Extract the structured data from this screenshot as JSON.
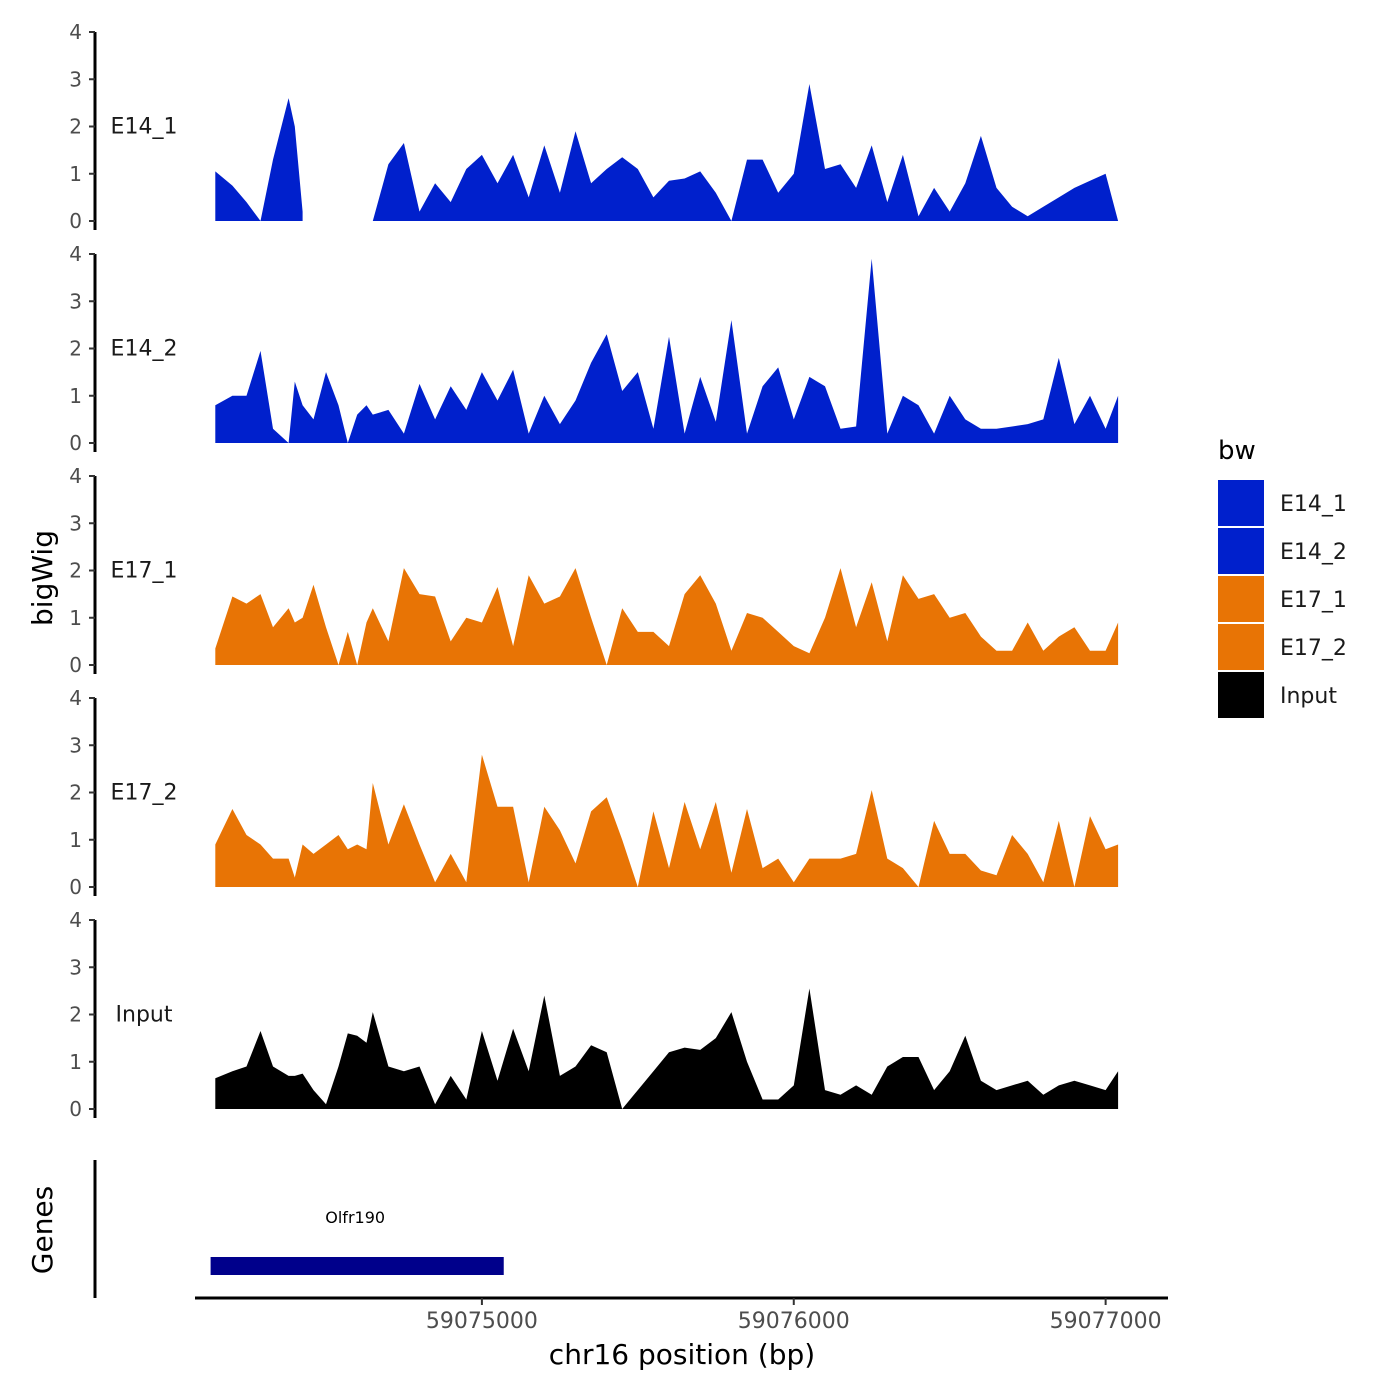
{
  "chart_data": {
    "type": "area",
    "title": "",
    "xlabel": "chr16 position (bp)",
    "ylabel": "bigWig",
    "genes_label": "Genes",
    "xlim": [
      59074080,
      59077200
    ],
    "ylim": [
      0,
      4
    ],
    "y_ticks": [
      "0",
      "1",
      "2",
      "3",
      "4"
    ],
    "x_ticks": [
      {
        "value": 59075000,
        "label": "59075000"
      },
      {
        "value": 59076000,
        "label": "59076000"
      },
      {
        "value": 59077000,
        "label": "59077000"
      }
    ],
    "legend": {
      "title": "bw",
      "position": "right",
      "entries": [
        {
          "label": "E14_1",
          "color": "#0020CC"
        },
        {
          "label": "E14_2",
          "color": "#0020CC"
        },
        {
          "label": "E17_1",
          "color": "#E87405"
        },
        {
          "label": "E17_2",
          "color": "#E87405"
        },
        {
          "label": "Input",
          "color": "#000000"
        }
      ]
    },
    "x": [
      59074145,
      59074200,
      59074245,
      59074290,
      59074330,
      59074380,
      59074400,
      59074425,
      59074460,
      59074500,
      59074540,
      59074570,
      59074600,
      59074630,
      59074650,
      59074700,
      59074750,
      59074800,
      59074850,
      59074900,
      59074950,
      59075000,
      59075050,
      59075100,
      59075150,
      59075200,
      59075250,
      59075300,
      59075350,
      59075400,
      59075450,
      59075500,
      59075550,
      59075600,
      59075650,
      59075700,
      59075750,
      59075800,
      59075850,
      59075900,
      59075950,
      59076000,
      59076050,
      59076100,
      59076150,
      59076200,
      59076250,
      59076300,
      59076350,
      59076400,
      59076450,
      59076500,
      59076550,
      59076600,
      59076650,
      59076700,
      59076750,
      59076800,
      59076850,
      59076900,
      59076950,
      59077000,
      59077040
    ],
    "series": [
      {
        "name": "E14_1",
        "color": "#0020CC",
        "values": [
          1.05,
          0.75,
          0.4,
          0.0,
          1.3,
          2.6,
          2.0,
          0.2,
          null,
          null,
          null,
          null,
          null,
          null,
          0.0,
          1.2,
          1.65,
          0.2,
          0.8,
          0.4,
          1.1,
          1.4,
          0.8,
          1.4,
          0.5,
          1.6,
          0.6,
          1.9,
          0.8,
          1.1,
          1.35,
          1.1,
          0.5,
          0.85,
          0.9,
          1.05,
          0.6,
          0.0,
          1.3,
          1.3,
          0.6,
          1.0,
          2.9,
          1.1,
          1.2,
          0.7,
          1.6,
          0.4,
          1.4,
          0.1,
          0.7,
          0.2,
          0.8,
          1.8,
          0.7,
          0.3,
          0.1,
          0.3,
          0.5,
          0.7,
          0.85,
          1.0,
          0.0
        ]
      },
      {
        "name": "E14_2",
        "color": "#0020CC",
        "values": [
          0.8,
          1.0,
          1.0,
          1.95,
          0.3,
          0.0,
          1.3,
          0.8,
          0.5,
          1.5,
          0.8,
          0.0,
          0.6,
          0.8,
          0.6,
          0.7,
          0.2,
          1.25,
          0.5,
          1.2,
          0.7,
          1.5,
          0.9,
          1.55,
          0.2,
          1.0,
          0.4,
          0.9,
          1.7,
          2.3,
          1.1,
          1.5,
          0.3,
          2.25,
          0.2,
          1.4,
          0.45,
          2.6,
          0.2,
          1.2,
          1.6,
          0.5,
          1.4,
          1.2,
          0.3,
          0.35,
          3.9,
          0.2,
          1.0,
          0.8,
          0.2,
          1.0,
          0.5,
          0.3,
          0.3,
          0.35,
          0.4,
          0.5,
          1.8,
          0.4,
          1.0,
          0.3,
          1.0
        ]
      },
      {
        "name": "E17_1",
        "color": "#E87405",
        "values": [
          0.35,
          1.45,
          1.3,
          1.5,
          0.8,
          1.2,
          0.9,
          1.0,
          1.7,
          0.8,
          0.0,
          0.7,
          0.0,
          0.9,
          1.2,
          0.5,
          2.05,
          1.5,
          1.45,
          0.5,
          1.0,
          0.9,
          1.65,
          0.4,
          1.9,
          1.3,
          1.45,
          2.05,
          1.0,
          0.0,
          1.2,
          0.7,
          0.7,
          0.4,
          1.5,
          1.9,
          1.3,
          0.3,
          1.1,
          1.0,
          0.7,
          0.4,
          0.25,
          1.0,
          2.05,
          0.8,
          1.75,
          0.5,
          1.9,
          1.4,
          1.5,
          1.0,
          1.1,
          0.6,
          0.3,
          0.3,
          0.9,
          0.3,
          0.6,
          0.8,
          0.3,
          0.3,
          0.9
        ]
      },
      {
        "name": "E17_2",
        "color": "#E87405",
        "values": [
          0.9,
          1.65,
          1.1,
          0.9,
          0.6,
          0.6,
          0.2,
          0.9,
          0.7,
          0.9,
          1.1,
          0.8,
          0.9,
          0.8,
          2.2,
          0.9,
          1.75,
          0.9,
          0.1,
          0.7,
          0.1,
          2.8,
          1.7,
          1.7,
          0.1,
          1.7,
          1.2,
          0.5,
          1.6,
          1.9,
          1.0,
          0.0,
          1.6,
          0.4,
          1.8,
          0.8,
          1.8,
          0.3,
          1.65,
          0.4,
          0.6,
          0.1,
          0.6,
          0.6,
          0.6,
          0.7,
          2.05,
          0.6,
          0.4,
          0.0,
          1.4,
          0.7,
          0.7,
          0.35,
          0.25,
          1.1,
          0.7,
          0.1,
          1.4,
          0.0,
          1.5,
          0.8,
          0.9
        ]
      },
      {
        "name": "Input",
        "color": "#000000",
        "values": [
          0.65,
          0.8,
          0.9,
          1.65,
          0.9,
          0.7,
          0.7,
          0.75,
          0.4,
          0.1,
          0.9,
          1.6,
          1.55,
          1.4,
          2.05,
          0.9,
          0.8,
          0.9,
          0.1,
          0.7,
          0.2,
          1.65,
          0.6,
          1.7,
          0.8,
          2.4,
          0.7,
          0.9,
          1.35,
          1.2,
          0.0,
          0.4,
          0.8,
          1.2,
          1.3,
          1.25,
          1.5,
          2.05,
          1.0,
          0.2,
          0.2,
          0.5,
          2.55,
          0.4,
          0.3,
          0.5,
          0.3,
          0.9,
          1.1,
          1.1,
          0.4,
          0.8,
          1.55,
          0.6,
          0.4,
          0.5,
          0.6,
          0.3,
          0.5,
          0.6,
          0.5,
          0.4,
          0.8
        ]
      }
    ],
    "genes": [
      {
        "name": "Olfr190",
        "start": 59074130,
        "end": 59075070,
        "color": "#00008B"
      }
    ]
  }
}
